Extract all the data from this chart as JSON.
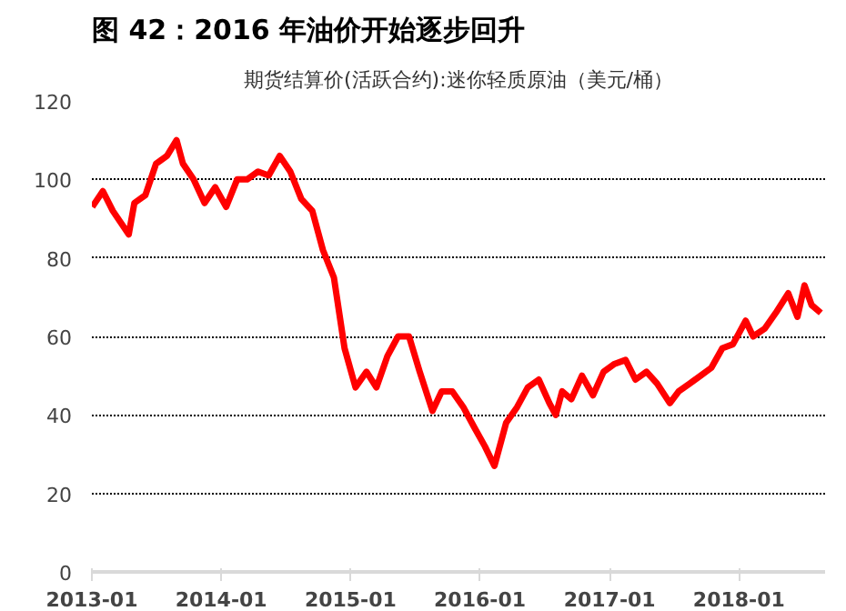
{
  "chart_data": {
    "type": "line",
    "title": "图 42：2016 年油价开始逐步回升",
    "subtitle": "期货结算价(活跃合约):迷你轻质原油（美元/桶）",
    "x": [
      "2013-01-02",
      "2013-02-01",
      "2013-03-01",
      "2013-04-15",
      "2013-05-01",
      "2013-06-01",
      "2013-07-01",
      "2013-08-01",
      "2013-08-28",
      "2013-09-15",
      "2013-10-15",
      "2013-11-15",
      "2013-12-15",
      "2014-01-15",
      "2014-02-15",
      "2014-03-15",
      "2014-04-15",
      "2014-05-15",
      "2014-06-15",
      "2014-07-15",
      "2014-08-15",
      "2014-09-15",
      "2014-10-15",
      "2014-11-15",
      "2014-12-15",
      "2015-01-15",
      "2015-02-15",
      "2015-03-15",
      "2015-04-15",
      "2015-05-15",
      "2015-06-15",
      "2015-07-15",
      "2015-08-20",
      "2015-09-15",
      "2015-10-15",
      "2015-11-15",
      "2015-12-15",
      "2016-01-15",
      "2016-02-11",
      "2016-03-15",
      "2016-04-15",
      "2016-05-15",
      "2016-06-15",
      "2016-07-15",
      "2016-08-02",
      "2016-08-20",
      "2016-09-15",
      "2016-10-15",
      "2016-11-15",
      "2016-12-15",
      "2017-01-15",
      "2017-02-15",
      "2017-03-15",
      "2017-04-15",
      "2017-05-15",
      "2017-06-20",
      "2017-07-15",
      "2017-08-15",
      "2017-09-15",
      "2017-10-15",
      "2017-11-15",
      "2017-12-15",
      "2018-01-20",
      "2018-02-10",
      "2018-03-15",
      "2018-04-15",
      "2018-05-20",
      "2018-06-15",
      "2018-07-05",
      "2018-07-25",
      "2018-08-20"
    ],
    "values": [
      93,
      97,
      92,
      86,
      94,
      96,
      104,
      106,
      110,
      104,
      100,
      94,
      98,
      93,
      100,
      100,
      102,
      101,
      106,
      102,
      95,
      92,
      82,
      75,
      57,
      47,
      51,
      47,
      55,
      60,
      60,
      51,
      41,
      46,
      46,
      42,
      37,
      32,
      27,
      38,
      42,
      47,
      49,
      43,
      40,
      46,
      44,
      50,
      45,
      51,
      53,
      54,
      49,
      51,
      48,
      43,
      46,
      48,
      50,
      52,
      57,
      58,
      64,
      60,
      62,
      66,
      71,
      65,
      73,
      68,
      66
    ],
    "color": "#ff0000",
    "xlim": [
      "2013-01-01",
      "2018-09-01"
    ],
    "xticks": [
      {
        "value": "2013-01-01",
        "label": "2013-01"
      },
      {
        "value": "2014-01-01",
        "label": "2014-01"
      },
      {
        "value": "2015-01-01",
        "label": "2015-01"
      },
      {
        "value": "2016-01-01",
        "label": "2016-01"
      },
      {
        "value": "2017-01-01",
        "label": "2017-01"
      },
      {
        "value": "2018-01-01",
        "label": "2018-01"
      }
    ],
    "ylim": [
      0,
      120
    ],
    "yticks": [
      0,
      20,
      40,
      60,
      80,
      100,
      120
    ],
    "grid": "y",
    "marker": "none",
    "line_style": "solid"
  }
}
